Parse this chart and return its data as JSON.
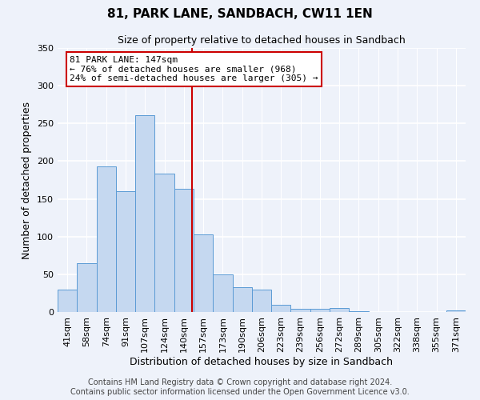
{
  "title": "81, PARK LANE, SANDBACH, CW11 1EN",
  "subtitle": "Size of property relative to detached houses in Sandbach",
  "xlabel": "Distribution of detached houses by size in Sandbach",
  "ylabel": "Number of detached properties",
  "bar_labels": [
    "41sqm",
    "58sqm",
    "74sqm",
    "91sqm",
    "107sqm",
    "124sqm",
    "140sqm",
    "157sqm",
    "173sqm",
    "190sqm",
    "206sqm",
    "223sqm",
    "239sqm",
    "256sqm",
    "272sqm",
    "289sqm",
    "305sqm",
    "322sqm",
    "338sqm",
    "355sqm",
    "371sqm"
  ],
  "bar_values": [
    30,
    65,
    193,
    160,
    261,
    184,
    163,
    103,
    50,
    33,
    30,
    10,
    4,
    4,
    5,
    1,
    0,
    0,
    0,
    0,
    2
  ],
  "bar_color": "#c5d8f0",
  "bar_edge_color": "#5b9bd5",
  "property_line_label": "81 PARK LANE: 147sqm",
  "annotation_line1": "← 76% of detached houses are smaller (968)",
  "annotation_line2": "24% of semi-detached houses are larger (305) →",
  "annotation_box_edge_color": "#cc0000",
  "vline_color": "#cc0000",
  "vline_index": 6.5,
  "ylim": [
    0,
    350
  ],
  "yticks": [
    0,
    50,
    100,
    150,
    200,
    250,
    300,
    350
  ],
  "footer_line1": "Contains HM Land Registry data © Crown copyright and database right 2024.",
  "footer_line2": "Contains public sector information licensed under the Open Government Licence v3.0.",
  "bg_color": "#eef2fa",
  "plot_bg_color": "#eef2fa",
  "title_fontsize": 11,
  "subtitle_fontsize": 9,
  "ylabel_fontsize": 9,
  "xlabel_fontsize": 9,
  "tick_fontsize": 8,
  "annotation_fontsize": 8,
  "footer_fontsize": 7
}
